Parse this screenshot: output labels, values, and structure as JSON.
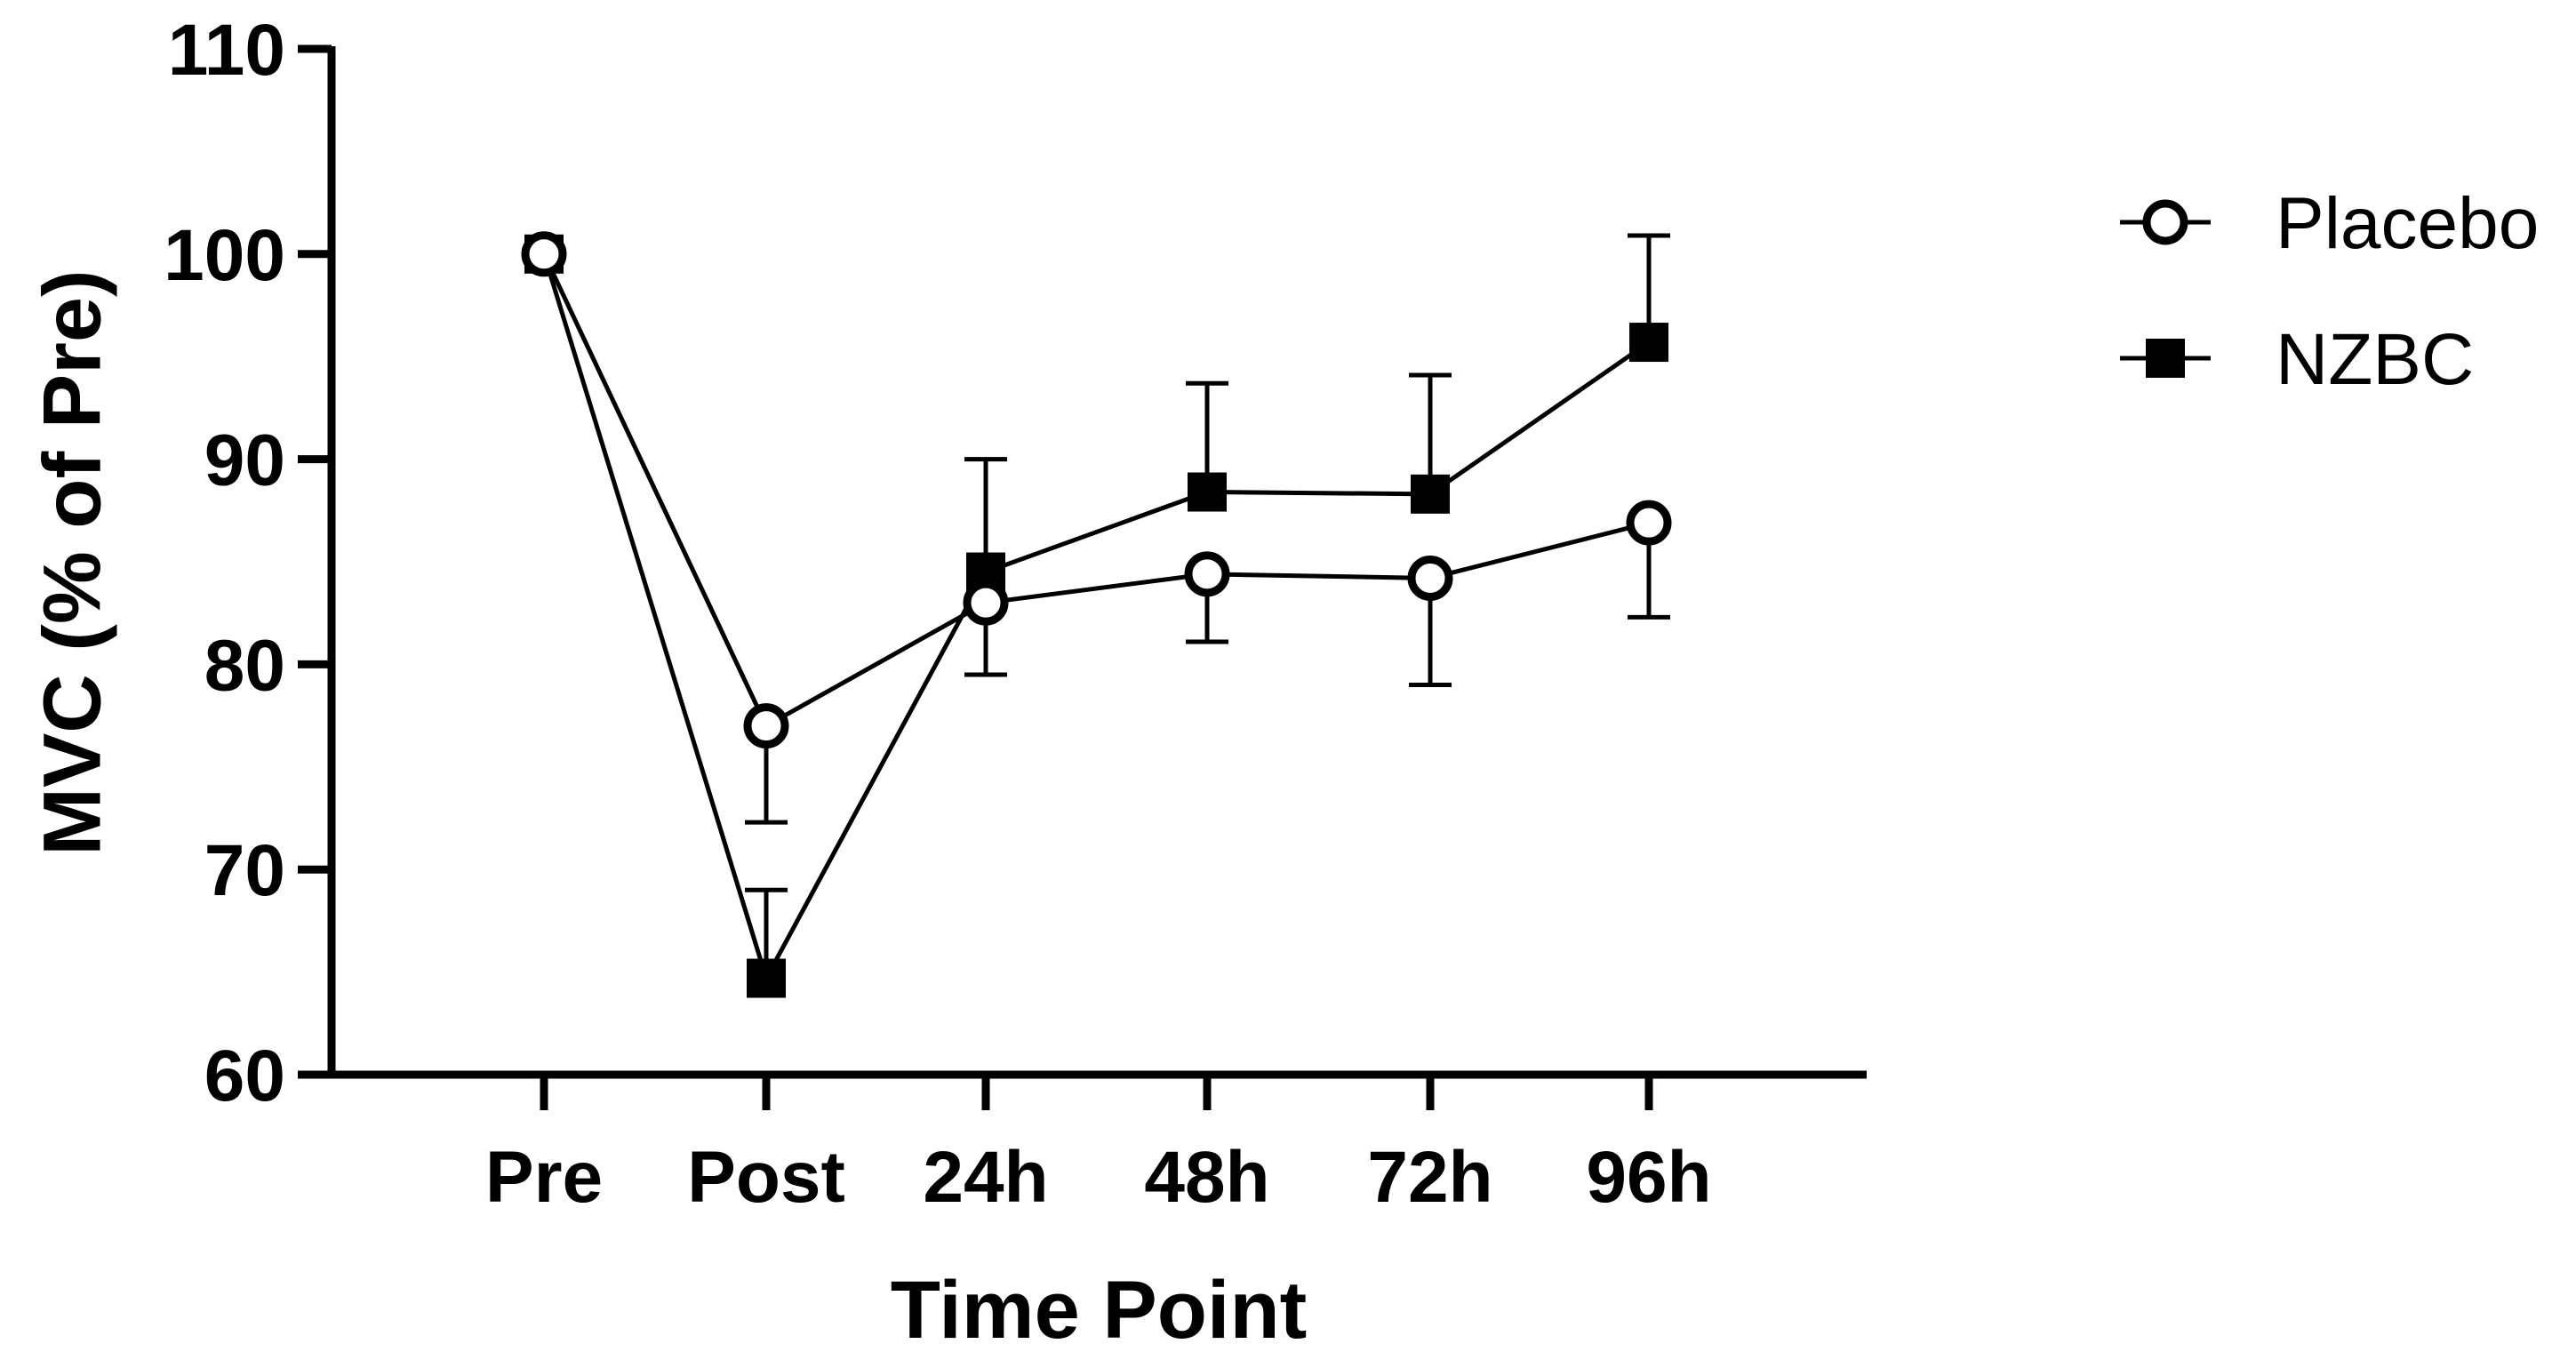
{
  "chart_data": {
    "type": "line",
    "title": "",
    "xlabel": "Time Point",
    "ylabel": "MVC (% of Pre)",
    "categories": [
      "Pre",
      "Post",
      "24h",
      "48h",
      "72h",
      "96h"
    ],
    "ylim": [
      60,
      110
    ],
    "yticks": [
      "60",
      "70",
      "80",
      "90",
      "100",
      "110"
    ],
    "grid": false,
    "legend_position": "top-right, outside plot",
    "series": [
      {
        "name": "Placebo",
        "marker": "open-circle",
        "color": "#000000",
        "values": [
          100,
          77,
          83,
          84.4,
          84.2,
          86.9
        ],
        "error_bars": [
          {
            "direction": "down",
            "end": 72.3
          },
          {
            "direction": "down",
            "end": 79.5
          },
          {
            "direction": "down",
            "end": 81.1
          },
          {
            "direction": "down",
            "end": 79
          },
          {
            "direction": "down",
            "end": 82.3
          }
        ]
      },
      {
        "name": "NZBC",
        "marker": "filled-square",
        "color": "#000000",
        "values": [
          100,
          64.7,
          84.5,
          88.4,
          88.3,
          95.7
        ],
        "error_bars": [
          {
            "direction": "up",
            "end": 69
          },
          {
            "direction": "up",
            "end": 90
          },
          {
            "direction": "up",
            "end": 93.7
          },
          {
            "direction": "up",
            "end": 94.1
          },
          {
            "direction": "up",
            "end": 100.9
          }
        ]
      }
    ]
  }
}
